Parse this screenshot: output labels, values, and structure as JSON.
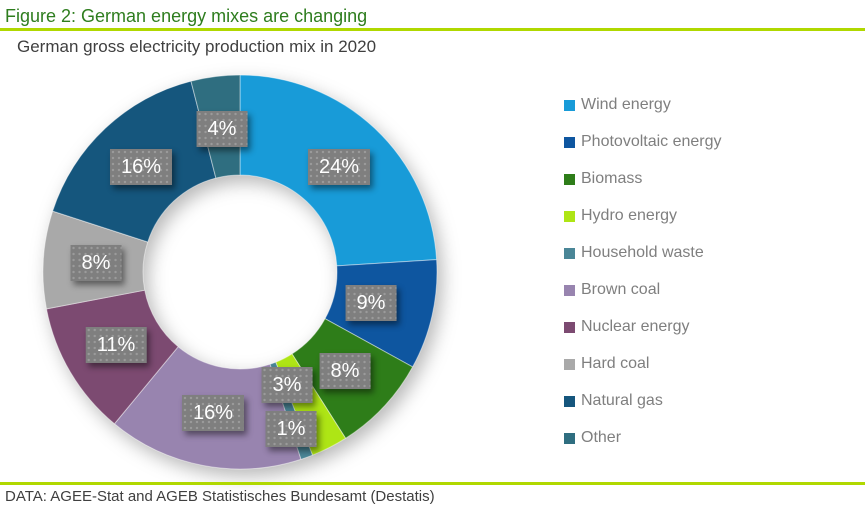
{
  "header": {
    "title": "Figure 2: German energy mixes are changing",
    "subtitle": "German gross electricity production mix in 2020"
  },
  "footer": {
    "source": "DATA: AGEE-Stat and AGEB Statistisches Bundesamt (Destatis)"
  },
  "colors": {
    "title_text": "#2E7D1E",
    "accent_rule": "#B0D800",
    "subtitle_text": "#3F3F3F",
    "footer_text": "#3F3F3F",
    "legend_text": "#7F7F7F",
    "label_box_bg": "#7F7F7F",
    "label_box_text": "#FFFFFF"
  },
  "chart_data": {
    "type": "pie",
    "variant": "donut",
    "title": "German gross electricity production mix in 2020",
    "unit": "%",
    "start_angle_deg": 0,
    "direction": "clockwise",
    "legend_position": "right",
    "slices": [
      {
        "label": "Wind energy",
        "value": 24,
        "display": "24%",
        "color": "#189BD8"
      },
      {
        "label": "Photovoltaic energy",
        "value": 9,
        "display": "9%",
        "color": "#0E56A0"
      },
      {
        "label": "Biomass",
        "value": 8,
        "display": "8%",
        "color": "#2E7D19"
      },
      {
        "label": "Hydro energy",
        "value": 3,
        "display": "3%",
        "color": "#AEE515"
      },
      {
        "label": "Household waste",
        "value": 1,
        "display": "1%",
        "color": "#4A8697"
      },
      {
        "label": "Brown coal",
        "value": 16,
        "display": "16%",
        "color": "#9884AF"
      },
      {
        "label": "Nuclear energy",
        "value": 11,
        "display": "11%",
        "color": "#7C4A71"
      },
      {
        "label": "Hard coal",
        "value": 8,
        "display": "8%",
        "color": "#A9A9A9"
      },
      {
        "label": "Natural gas",
        "value": 16,
        "display": "16%",
        "color": "#15567D"
      },
      {
        "label": "Other",
        "value": 4,
        "display": "4%",
        "color": "#2F6E80"
      }
    ]
  }
}
